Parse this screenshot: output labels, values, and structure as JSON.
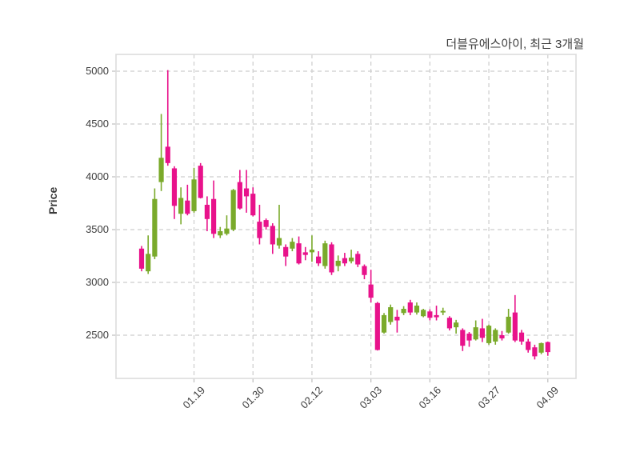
{
  "chart": {
    "title": "더블유에스아이, 최근 3개월",
    "ylabel": "Price"
  },
  "chart_data": {
    "type": "candlestick",
    "title": "더블유에스아이, 최근 3개월",
    "subtitle": "",
    "ylabel": "Price",
    "xlabel": "",
    "ylim": [
      2100,
      5150
    ],
    "y_ticks": [
      5000,
      4500,
      4000,
      3500,
      3000,
      2500
    ],
    "x_tick_labels": [
      "01.19",
      "01.30",
      "02.12",
      "03.03",
      "03.16",
      "03.27",
      "04.09"
    ],
    "x_tick_indices": [
      8,
      17,
      26,
      35,
      44,
      53,
      62
    ],
    "grid": "dashed",
    "legend": "none",
    "colors": {
      "up": "#7aaa2b",
      "down": "#e8128b",
      "grid": "#cdcdcd",
      "spine": "#dcdcdc",
      "tick": "#bdbdbd",
      "text": "#3c3c3c",
      "background": "#ffffff"
    },
    "series_name": "더블유에스아이",
    "ohlc_order": [
      "open",
      "high",
      "low",
      "close"
    ],
    "candles": [
      [
        3320,
        3345,
        3105,
        3130
      ],
      [
        3105,
        3445,
        3080,
        3270
      ],
      [
        3245,
        3890,
        3220,
        3790
      ],
      [
        3950,
        4595,
        3865,
        4180
      ],
      [
        4285,
        5010,
        4105,
        4130
      ],
      [
        4080,
        4100,
        3600,
        3725
      ],
      [
        3650,
        3900,
        3550,
        3800
      ],
      [
        3775,
        3925,
        3635,
        3650
      ],
      [
        3675,
        4085,
        3660,
        3975
      ],
      [
        4105,
        4130,
        3795,
        3800
      ],
      [
        3735,
        3815,
        3485,
        3600
      ],
      [
        3790,
        3965,
        3420,
        3460
      ],
      [
        3445,
        3525,
        3420,
        3485
      ],
      [
        3460,
        3635,
        3445,
        3510
      ],
      [
        3500,
        3885,
        3485,
        3875
      ],
      [
        3950,
        4065,
        3690,
        3700
      ],
      [
        3890,
        4065,
        3660,
        3815
      ],
      [
        3840,
        3900,
        3625,
        3635
      ],
      [
        3575,
        3735,
        3360,
        3420
      ],
      [
        3590,
        3605,
        3500,
        3525
      ],
      [
        3535,
        3560,
        3270,
        3360
      ],
      [
        3350,
        3735,
        3320,
        3420
      ],
      [
        3335,
        3360,
        3155,
        3245
      ],
      [
        3320,
        3420,
        3295,
        3385
      ],
      [
        3370,
        3435,
        3170,
        3180
      ],
      [
        3285,
        3335,
        3210,
        3260
      ],
      [
        3285,
        3445,
        3195,
        3310
      ],
      [
        3245,
        3295,
        3155,
        3180
      ],
      [
        3155,
        3395,
        3130,
        3370
      ],
      [
        3360,
        3380,
        3070,
        3095
      ],
      [
        3155,
        3255,
        3105,
        3205
      ],
      [
        3230,
        3280,
        3155,
        3180
      ],
      [
        3200,
        3310,
        3180,
        3235
      ],
      [
        3270,
        3295,
        3145,
        3170
      ],
      [
        3155,
        3170,
        3030,
        3070
      ],
      [
        2980,
        3120,
        2810,
        2855
      ],
      [
        2805,
        2815,
        2355,
        2360
      ],
      [
        2525,
        2710,
        2515,
        2690
      ],
      [
        2625,
        2790,
        2600,
        2765
      ],
      [
        2675,
        2740,
        2525,
        2640
      ],
      [
        2710,
        2775,
        2690,
        2750
      ],
      [
        2810,
        2835,
        2690,
        2715
      ],
      [
        2715,
        2810,
        2695,
        2780
      ],
      [
        2680,
        2750,
        2670,
        2740
      ],
      [
        2725,
        2745,
        2640,
        2665
      ],
      [
        2690,
        2780,
        2640,
        2670
      ],
      [
        2715,
        2760,
        2690,
        2730
      ],
      [
        2665,
        2680,
        2545,
        2565
      ],
      [
        2575,
        2645,
        2515,
        2620
      ],
      [
        2550,
        2565,
        2350,
        2400
      ],
      [
        2515,
        2530,
        2390,
        2450
      ],
      [
        2460,
        2640,
        2450,
        2575
      ],
      [
        2565,
        2655,
        2435,
        2475
      ],
      [
        2425,
        2600,
        2410,
        2590
      ],
      [
        2440,
        2565,
        2410,
        2550
      ],
      [
        2500,
        2540,
        2450,
        2470
      ],
      [
        2525,
        2750,
        2515,
        2675
      ],
      [
        2715,
        2880,
        2435,
        2450
      ],
      [
        2525,
        2550,
        2410,
        2440
      ],
      [
        2440,
        2465,
        2335,
        2360
      ],
      [
        2385,
        2410,
        2270,
        2300
      ],
      [
        2335,
        2430,
        2320,
        2425
      ],
      [
        2435,
        2440,
        2305,
        2340
      ]
    ]
  }
}
